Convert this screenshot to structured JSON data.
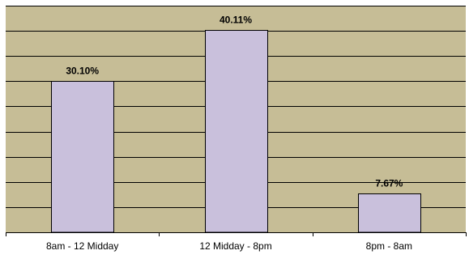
{
  "chart_data": {
    "type": "bar",
    "categories": [
      "8am - 12 Midday",
      "12 Midday - 8pm",
      "8pm - 8am"
    ],
    "values": [
      30.1,
      40.11,
      7.67
    ],
    "data_labels": [
      "30.10%",
      "40.11%",
      "7.67%"
    ],
    "title": "",
    "xlabel": "",
    "ylabel": "",
    "ylim": [
      0,
      45
    ],
    "grid": true,
    "legend": "none",
    "colors": {
      "plot_background": "#c6bd96",
      "bar_fill": "#c9c0dc",
      "bar_stroke": "#000000",
      "gridline": "#000000",
      "axis": "#000000"
    }
  }
}
